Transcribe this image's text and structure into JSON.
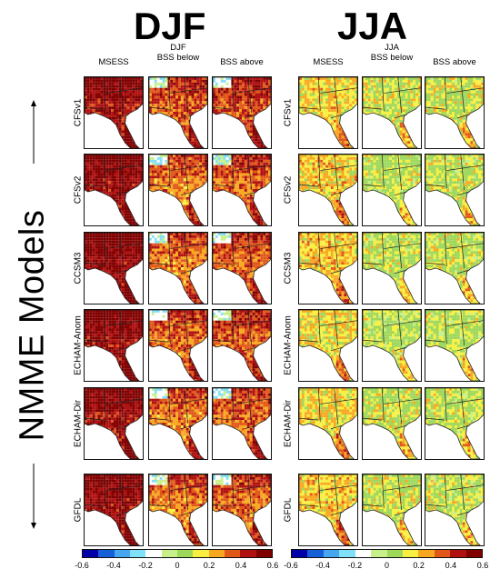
{
  "seasons": [
    {
      "title": "DJF",
      "sub_label": "DJF",
      "headers": [
        "MSESS",
        "BSS below",
        "BSS above"
      ]
    },
    {
      "title": "JJA",
      "sub_label": "JJA",
      "headers": [
        "MSESS",
        "BSS below",
        "BSS above"
      ]
    }
  ],
  "models": [
    "CFSv1",
    "CFSv2",
    "CCSM3",
    "ECHAM-Anom",
    "ECHAM-Dir",
    "GFDL"
  ],
  "side_label": "NMME Models",
  "colorbar": {
    "colors": [
      "#0000a8",
      "#1560d8",
      "#47a6f0",
      "#7fe0f8",
      "#ffffff",
      "#c8f08a",
      "#9ed85a",
      "#f8f040",
      "#f8a820",
      "#e05818",
      "#b01010",
      "#800000"
    ],
    "ticks": [
      "-0.6",
      "-0.4",
      "-0.2",
      "0",
      "0.2",
      "0.4",
      "0.6"
    ]
  },
  "skill_levels": {
    "DJF": [
      [
        0.48,
        0.35,
        0.38
      ],
      [
        0.5,
        0.3,
        0.33
      ],
      [
        0.52,
        0.3,
        0.34
      ],
      [
        0.5,
        0.32,
        0.35
      ],
      [
        0.48,
        0.3,
        0.33
      ],
      [
        0.5,
        0.3,
        0.32
      ]
    ],
    "JJA": [
      [
        0.18,
        0.12,
        0.12
      ],
      [
        0.2,
        0.1,
        0.1
      ],
      [
        0.2,
        0.1,
        0.11
      ],
      [
        0.16,
        0.08,
        0.09
      ],
      [
        0.18,
        0.12,
        0.1
      ],
      [
        0.2,
        0.12,
        0.1
      ]
    ]
  }
}
